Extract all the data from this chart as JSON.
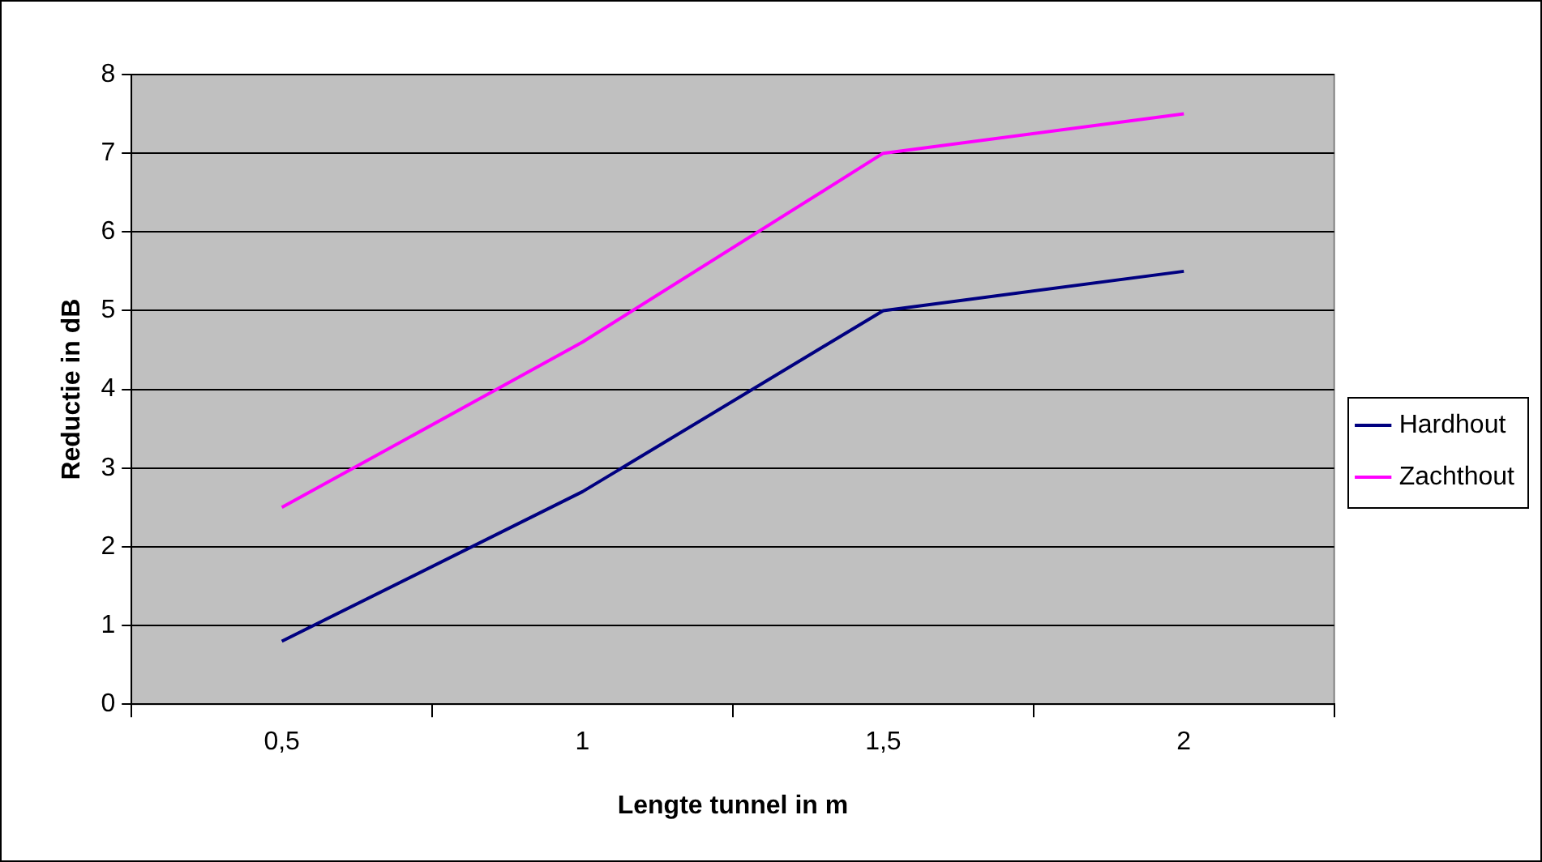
{
  "chart_data": {
    "type": "line",
    "xlabel": "Lengte tunnel in m",
    "ylabel": "Reductie in dB",
    "categories": [
      "0,5",
      "1",
      "1,5",
      "2"
    ],
    "series": [
      {
        "name": "Hardhout",
        "color": "#000080",
        "values": [
          0.8,
          2.7,
          5.0,
          5.5
        ]
      },
      {
        "name": "Zachthout",
        "color": "#ff00ff",
        "values": [
          2.5,
          4.6,
          7.0,
          7.5
        ]
      }
    ],
    "ylim": [
      0,
      8
    ],
    "yticks": [
      0,
      1,
      2,
      3,
      4,
      5,
      6,
      7,
      8
    ],
    "grid": "y",
    "legend": "right",
    "marker": "none",
    "line_style": "solid"
  }
}
